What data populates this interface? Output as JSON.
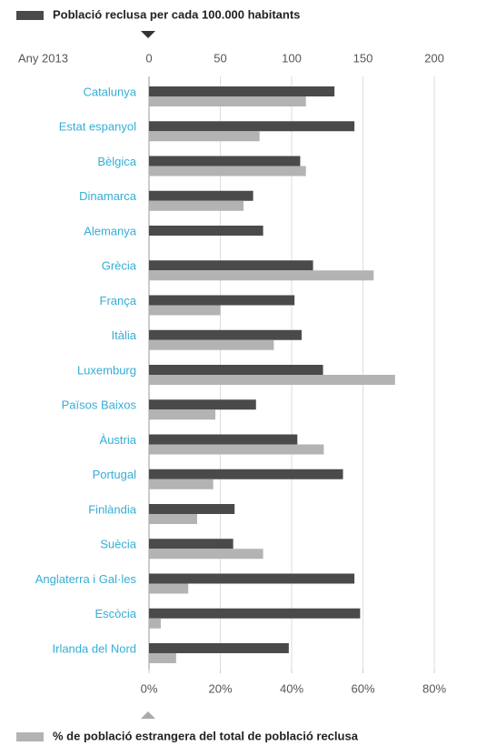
{
  "chart_data": {
    "type": "bar",
    "orientation": "horizontal",
    "annotation": "Any 2013",
    "categories": [
      "Catalunya",
      "Estat espanyol",
      "Bèlgica",
      "Dinamarca",
      "Alemanya",
      "Grècia",
      "França",
      "Itàlia",
      "Luxemburg",
      "Països Baixos",
      "Àustria",
      "Portugal",
      "Finlàndia",
      "Suècia",
      "Anglaterra i Gal·les",
      "Escòcia",
      "Irlanda del Nord"
    ],
    "series": [
      {
        "name": "Població reclusa per cada 100.000 habitants",
        "color": "#4a4a4a",
        "axis": "x",
        "values": [
          130,
          144,
          106,
          73,
          80,
          115,
          102,
          107,
          122,
          75,
          104,
          136,
          60,
          59,
          144,
          148,
          98
        ]
      },
      {
        "name": "% de població estrangera del total de població reclusa",
        "color": "#b3b3b3",
        "axis": "x2",
        "values": [
          44,
          31,
          44,
          26.5,
          null,
          63,
          20,
          35,
          69,
          18.6,
          49,
          18,
          13.5,
          32,
          11,
          3.3,
          7.6
        ]
      }
    ],
    "xlim": [
      0,
      200
    ],
    "xticks": [
      0,
      50,
      100,
      150,
      200
    ],
    "x2lim": [
      0,
      80
    ],
    "x2ticks": [
      {
        "value": 0,
        "label": "0%"
      },
      {
        "value": 20,
        "label": "20%"
      },
      {
        "value": 40,
        "label": "40%"
      },
      {
        "value": 60,
        "label": "60%"
      },
      {
        "value": 80,
        "label": "80%"
      }
    ],
    "grid": true
  }
}
